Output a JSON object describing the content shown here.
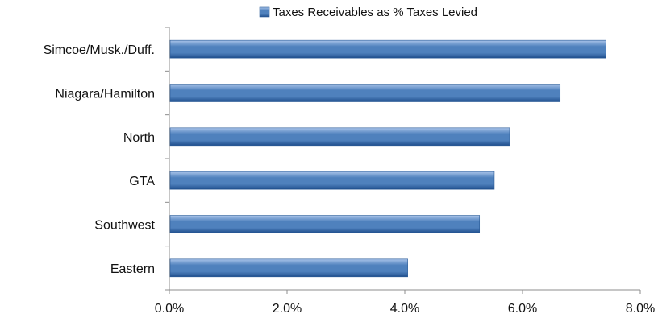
{
  "chart_data": {
    "type": "bar",
    "orientation": "horizontal",
    "categories": [
      "Eastern",
      "Southwest",
      "GTA",
      "North",
      "Niagara/Hamilton",
      "Simcoe/Musk./Duff."
    ],
    "series": [
      {
        "name": "Taxes Receivables as % Taxes Levied",
        "values": [
          4.05,
          5.27,
          5.52,
          5.78,
          6.64,
          7.42
        ]
      }
    ],
    "xlim": [
      0,
      8
    ],
    "x_ticks": [
      0,
      2,
      4,
      6,
      8
    ],
    "x_tick_labels": [
      "0.0%",
      "2.0%",
      "4.0%",
      "6.0%",
      "8.0%"
    ],
    "legend_position": "top",
    "grid": false,
    "colors": {
      "bar": "#4f81bd",
      "bar_dark": "#1f4e8c",
      "bar_light": "#a9c4ea"
    }
  }
}
